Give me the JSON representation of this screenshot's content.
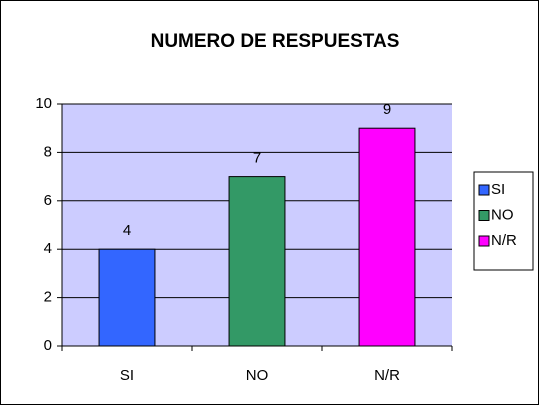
{
  "chart_data": {
    "type": "bar",
    "title": "NUMERO DE RESPUESTAS",
    "categories": [
      "SI",
      "NO",
      "N/R"
    ],
    "values": [
      4,
      7,
      9
    ],
    "colors": [
      "#3366ff",
      "#339966",
      "#ff00ff"
    ],
    "ylim": [
      0,
      10
    ],
    "yticks": [
      0,
      2,
      4,
      6,
      8,
      10
    ],
    "grid": true,
    "legend": "right"
  }
}
